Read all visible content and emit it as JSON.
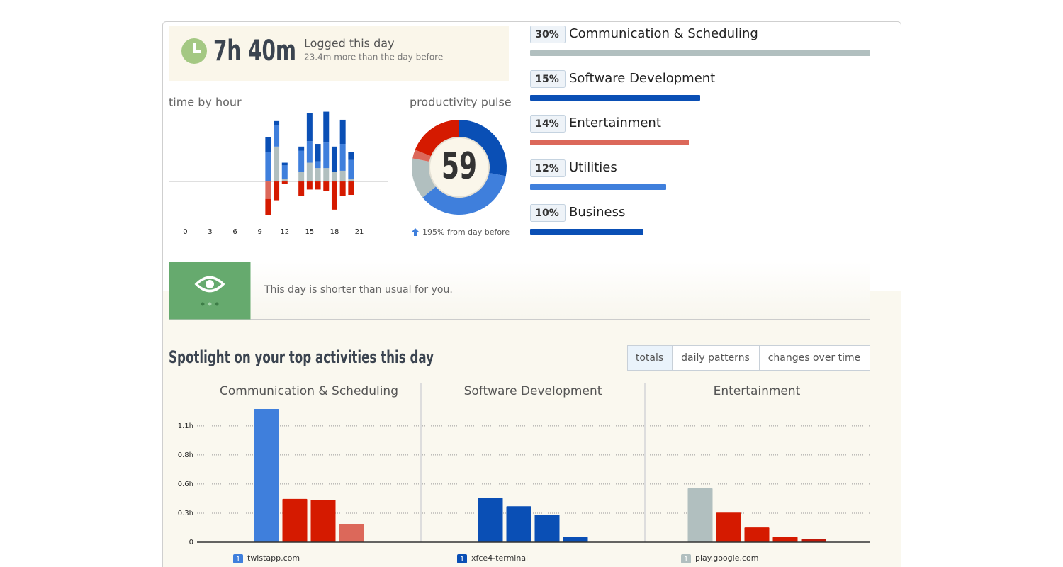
{
  "summary": {
    "total": "7h 40m",
    "label": "Logged this day",
    "change": "23.4m more than the day before"
  },
  "notice": "This day is shorter than usual for you.",
  "spotlight": {
    "title": "Spotlight on your top activities this day",
    "tabs": [
      "totals",
      "daily patterns",
      "changes over time"
    ],
    "active_tab": 0
  },
  "chart_data": [
    {
      "type": "stacked_bar",
      "title": "time by hour",
      "x": [
        10,
        11,
        12,
        14,
        15,
        16,
        17,
        18,
        19,
        20
      ],
      "xticks": [
        0,
        3,
        6,
        9,
        12,
        15,
        18,
        21
      ],
      "xlim": [
        -2,
        24.5
      ],
      "ylim": [
        -29,
        56
      ],
      "series": [
        {
          "color": "#b1bfbf",
          "values": [
            0,
            26,
            2,
            7,
            14,
            10,
            10,
            7,
            8,
            2
          ]
        },
        {
          "color": "#3f7fdc",
          "values": [
            22,
            16,
            10,
            16,
            16,
            5,
            19,
            0,
            20,
            14
          ]
        },
        {
          "color": "#0a4fb5",
          "values": [
            11,
            3,
            2,
            3,
            21,
            13,
            23,
            19,
            18,
            6
          ]
        },
        {
          "color": "#dc685a",
          "values": [
            -13,
            0,
            0,
            0,
            0,
            0,
            0,
            0,
            0,
            0
          ]
        },
        {
          "color": "#d51a00",
          "values": [
            -12,
            -14,
            -2,
            -11,
            -6,
            -6,
            -7,
            -21,
            -11,
            -10
          ]
        }
      ]
    },
    {
      "type": "donut",
      "title": "productivity pulse",
      "center_value": 59,
      "note": "195% from day before",
      "values": [
        28,
        36,
        14,
        3,
        19
      ],
      "colors": [
        "#0a4fb5",
        "#3f7fdc",
        "#b1bfbf",
        "#dc685a",
        "#d51a00"
      ]
    },
    {
      "type": "hbar",
      "categories": [
        "Communication & Scheduling",
        "Software Development",
        "Entertainment",
        "Utilities",
        "Business"
      ],
      "values": [
        30,
        15,
        14,
        12,
        10
      ],
      "value_labels": [
        "30%",
        "15%",
        "14%",
        "12%",
        "10%"
      ],
      "colors": [
        "#b1bfbf",
        "#0a4fb5",
        "#dc685a",
        "#3f7fdc",
        "#0a4fb5"
      ]
    },
    {
      "type": "bar",
      "title": "Communication & Scheduling",
      "values": [
        1.26,
        0.41,
        0.4,
        0.17
      ],
      "colors": [
        "#3f7fdc",
        "#d51a00",
        "#d51a00",
        "#dc685a"
      ],
      "ylim": [
        0,
        1.3
      ],
      "yticks": [
        0,
        {
          "value": 0.275,
          "label": "0.3h"
        },
        {
          "value": 0.55,
          "label": "0.6h"
        },
        {
          "value": 0.825,
          "label": "0.8h"
        },
        {
          "value": 1.1,
          "label": "1.1h"
        }
      ],
      "top_item": {
        "rank": 1,
        "name": "twistapp.com"
      }
    },
    {
      "type": "bar",
      "title": "Software Development",
      "values": [
        0.42,
        0.34,
        0.26,
        0.05
      ],
      "colors": [
        "#0a4fb5",
        "#0a4fb5",
        "#0a4fb5",
        "#0a4fb5"
      ],
      "ylim": [
        0,
        1.3
      ],
      "top_item": {
        "rank": 1,
        "name": "xfce4-terminal"
      }
    },
    {
      "type": "bar",
      "title": "Entertainment",
      "values": [
        0.51,
        0.28,
        0.14,
        0.05,
        0.03
      ],
      "colors": [
        "#b1bfbf",
        "#d51a00",
        "#d51a00",
        "#d51a00",
        "#c0190a"
      ],
      "ylim": [
        0,
        1.3
      ],
      "top_item": {
        "rank": 1,
        "name": "play.google.com"
      }
    }
  ]
}
